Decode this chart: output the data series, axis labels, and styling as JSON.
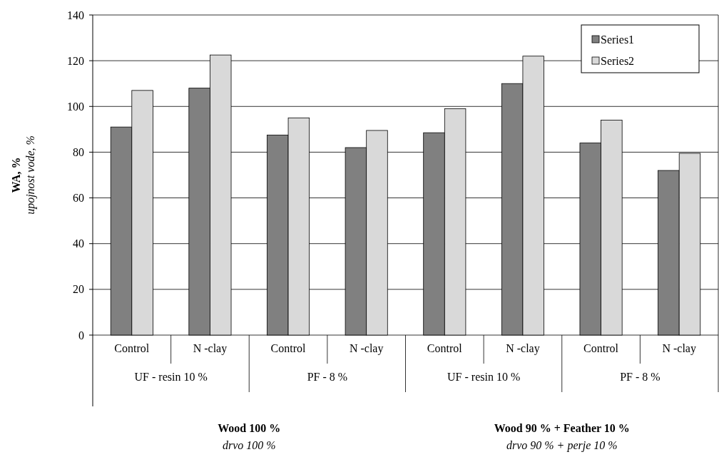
{
  "chart_data": {
    "type": "bar",
    "ylabel": "WA, %",
    "categories": [
      "Control",
      "N -clay",
      "Control",
      "N -clay",
      "Control",
      "N -clay",
      "Control",
      "N -clay"
    ],
    "series": [
      {
        "name": "Series1",
        "color": "#808080",
        "values": [
          91,
          108,
          87.5,
          82,
          88.5,
          110,
          84,
          72
        ]
      },
      {
        "name": "Series2",
        "color": "#d9d9d9",
        "values": [
          107,
          122.5,
          95,
          89.5,
          99,
          122,
          94,
          79.5
        ]
      }
    ],
    "ylim": [
      0,
      140
    ],
    "yticks": [
      0,
      20,
      40,
      60,
      80,
      100,
      120,
      140
    ],
    "grid": "y",
    "legend": "top right",
    "annotations": [
      "upojnost vode, %",
      "UF - resin 10 %",
      "PF - 8 %",
      "UF - resin 10 %",
      "PF - 8 %",
      "Wood 100 %",
      "drvo 100 %",
      "Wood 90 % + Feather 10 %",
      "drvo 90 % + perje 10 %"
    ]
  }
}
